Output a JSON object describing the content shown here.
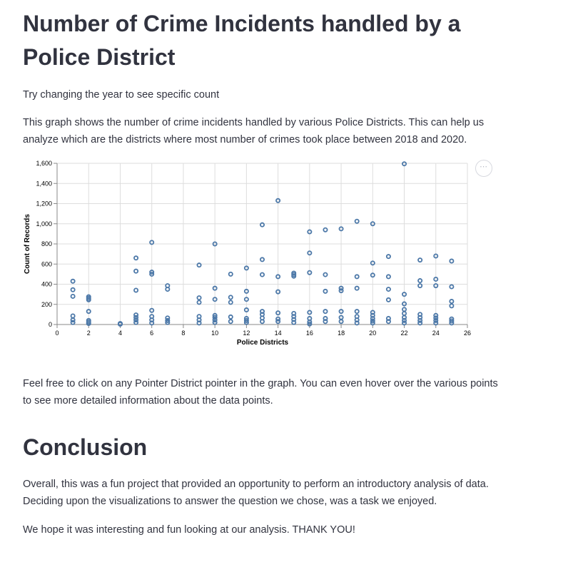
{
  "page": {
    "title": "Number of Crime Incidents handled by a Police District",
    "intro": "Try changing the year to see specific count",
    "description": "This graph shows the number of crime incidents handled by various Police Districts. This can help us analyze which are the districts where most number of crimes took place between 2018 and 2020.",
    "after_chart": "Feel free to click on any Pointer District pointer in the graph. You can even hover over the various points to see more detailed information about the data points.",
    "conclusion_heading": "Conclusion",
    "conclusion_p1": "Overall, this was a fun project that provided an opportunity to perform an introductory analysis of data. Deciding upon the visualizations to answer the question we chose, was a task we enjoyed.",
    "conclusion_p2": "We hope it was interesting and fun looking at our analysis. THANK YOU!",
    "chart_menu": "⋯"
  },
  "chart_data": {
    "type": "scatter",
    "xlabel": "Police Districts",
    "ylabel": "Count of Records",
    "xlim": [
      0,
      26
    ],
    "ylim": [
      0,
      1600
    ],
    "x_ticks": [
      0,
      2,
      4,
      6,
      8,
      10,
      12,
      14,
      16,
      18,
      20,
      22,
      24,
      26
    ],
    "y_ticks": [
      0,
      200,
      400,
      600,
      800,
      1000,
      1200,
      1400,
      1600
    ],
    "y_tick_labels": [
      "0",
      "200",
      "400",
      "600",
      "800",
      "1,000",
      "1,200",
      "1,400",
      "1,600"
    ],
    "grid": true,
    "marker": "hollow-circle",
    "color": "#4c78a8",
    "points": [
      {
        "x": 1,
        "y": 430
      },
      {
        "x": 1,
        "y": 345
      },
      {
        "x": 1,
        "y": 280
      },
      {
        "x": 1,
        "y": 85
      },
      {
        "x": 1,
        "y": 45
      },
      {
        "x": 1,
        "y": 20
      },
      {
        "x": 2,
        "y": 275
      },
      {
        "x": 2,
        "y": 260
      },
      {
        "x": 2,
        "y": 245
      },
      {
        "x": 2,
        "y": 130
      },
      {
        "x": 2,
        "y": 40
      },
      {
        "x": 2,
        "y": 25
      },
      {
        "x": 2,
        "y": 10
      },
      {
        "x": 4,
        "y": 10
      },
      {
        "x": 4,
        "y": 3
      },
      {
        "x": 5,
        "y": 660
      },
      {
        "x": 5,
        "y": 530
      },
      {
        "x": 5,
        "y": 340
      },
      {
        "x": 5,
        "y": 95
      },
      {
        "x": 5,
        "y": 70
      },
      {
        "x": 5,
        "y": 45
      },
      {
        "x": 5,
        "y": 20
      },
      {
        "x": 6,
        "y": 815
      },
      {
        "x": 6,
        "y": 520
      },
      {
        "x": 6,
        "y": 500
      },
      {
        "x": 6,
        "y": 140
      },
      {
        "x": 6,
        "y": 80
      },
      {
        "x": 6,
        "y": 45
      },
      {
        "x": 6,
        "y": 15
      },
      {
        "x": 7,
        "y": 385
      },
      {
        "x": 7,
        "y": 350
      },
      {
        "x": 7,
        "y": 65
      },
      {
        "x": 7,
        "y": 40
      },
      {
        "x": 7,
        "y": 20
      },
      {
        "x": 9,
        "y": 590
      },
      {
        "x": 9,
        "y": 265
      },
      {
        "x": 9,
        "y": 220
      },
      {
        "x": 9,
        "y": 80
      },
      {
        "x": 9,
        "y": 45
      },
      {
        "x": 9,
        "y": 15
      },
      {
        "x": 10,
        "y": 800
      },
      {
        "x": 10,
        "y": 360
      },
      {
        "x": 10,
        "y": 250
      },
      {
        "x": 10,
        "y": 90
      },
      {
        "x": 10,
        "y": 70
      },
      {
        "x": 10,
        "y": 45
      },
      {
        "x": 10,
        "y": 20
      },
      {
        "x": 11,
        "y": 500
      },
      {
        "x": 11,
        "y": 270
      },
      {
        "x": 11,
        "y": 220
      },
      {
        "x": 11,
        "y": 75
      },
      {
        "x": 11,
        "y": 30
      },
      {
        "x": 12,
        "y": 560
      },
      {
        "x": 12,
        "y": 330
      },
      {
        "x": 12,
        "y": 250
      },
      {
        "x": 12,
        "y": 145
      },
      {
        "x": 12,
        "y": 60
      },
      {
        "x": 12,
        "y": 40
      },
      {
        "x": 12,
        "y": 20
      },
      {
        "x": 13,
        "y": 990
      },
      {
        "x": 13,
        "y": 645
      },
      {
        "x": 13,
        "y": 495
      },
      {
        "x": 13,
        "y": 130
      },
      {
        "x": 13,
        "y": 100
      },
      {
        "x": 13,
        "y": 65
      },
      {
        "x": 13,
        "y": 30
      },
      {
        "x": 14,
        "y": 1230
      },
      {
        "x": 14,
        "y": 475
      },
      {
        "x": 14,
        "y": 325
      },
      {
        "x": 14,
        "y": 115
      },
      {
        "x": 14,
        "y": 55
      },
      {
        "x": 14,
        "y": 30
      },
      {
        "x": 15,
        "y": 510
      },
      {
        "x": 15,
        "y": 495
      },
      {
        "x": 15,
        "y": 480
      },
      {
        "x": 15,
        "y": 110
      },
      {
        "x": 15,
        "y": 80
      },
      {
        "x": 15,
        "y": 50
      },
      {
        "x": 15,
        "y": 20
      },
      {
        "x": 16,
        "y": 920
      },
      {
        "x": 16,
        "y": 710
      },
      {
        "x": 16,
        "y": 515
      },
      {
        "x": 16,
        "y": 120
      },
      {
        "x": 16,
        "y": 60
      },
      {
        "x": 16,
        "y": 25
      },
      {
        "x": 16,
        "y": 5
      },
      {
        "x": 17,
        "y": 940
      },
      {
        "x": 17,
        "y": 495
      },
      {
        "x": 17,
        "y": 330
      },
      {
        "x": 17,
        "y": 130
      },
      {
        "x": 17,
        "y": 60
      },
      {
        "x": 17,
        "y": 30
      },
      {
        "x": 18,
        "y": 950
      },
      {
        "x": 18,
        "y": 360
      },
      {
        "x": 18,
        "y": 335
      },
      {
        "x": 18,
        "y": 130
      },
      {
        "x": 18,
        "y": 70
      },
      {
        "x": 18,
        "y": 30
      },
      {
        "x": 19,
        "y": 1025
      },
      {
        "x": 19,
        "y": 475
      },
      {
        "x": 19,
        "y": 360
      },
      {
        "x": 19,
        "y": 130
      },
      {
        "x": 19,
        "y": 80
      },
      {
        "x": 19,
        "y": 45
      },
      {
        "x": 19,
        "y": 15
      },
      {
        "x": 20,
        "y": 1000
      },
      {
        "x": 20,
        "y": 610
      },
      {
        "x": 20,
        "y": 490
      },
      {
        "x": 20,
        "y": 120
      },
      {
        "x": 20,
        "y": 90
      },
      {
        "x": 20,
        "y": 60
      },
      {
        "x": 20,
        "y": 35
      },
      {
        "x": 20,
        "y": 15
      },
      {
        "x": 21,
        "y": 675
      },
      {
        "x": 21,
        "y": 475
      },
      {
        "x": 21,
        "y": 350
      },
      {
        "x": 21,
        "y": 245
      },
      {
        "x": 21,
        "y": 60
      },
      {
        "x": 21,
        "y": 30
      },
      {
        "x": 22,
        "y": 1595
      },
      {
        "x": 22,
        "y": 300
      },
      {
        "x": 22,
        "y": 205
      },
      {
        "x": 22,
        "y": 150
      },
      {
        "x": 22,
        "y": 110
      },
      {
        "x": 22,
        "y": 70
      },
      {
        "x": 22,
        "y": 40
      },
      {
        "x": 22,
        "y": 15
      },
      {
        "x": 23,
        "y": 640
      },
      {
        "x": 23,
        "y": 435
      },
      {
        "x": 23,
        "y": 385
      },
      {
        "x": 23,
        "y": 100
      },
      {
        "x": 23,
        "y": 70
      },
      {
        "x": 23,
        "y": 40
      },
      {
        "x": 23,
        "y": 15
      },
      {
        "x": 24,
        "y": 680
      },
      {
        "x": 24,
        "y": 450
      },
      {
        "x": 24,
        "y": 385
      },
      {
        "x": 24,
        "y": 90
      },
      {
        "x": 24,
        "y": 65
      },
      {
        "x": 24,
        "y": 40
      },
      {
        "x": 24,
        "y": 15
      },
      {
        "x": 25,
        "y": 630
      },
      {
        "x": 25,
        "y": 375
      },
      {
        "x": 25,
        "y": 230
      },
      {
        "x": 25,
        "y": 185
      },
      {
        "x": 25,
        "y": 55
      },
      {
        "x": 25,
        "y": 35
      },
      {
        "x": 25,
        "y": 15
      }
    ]
  }
}
